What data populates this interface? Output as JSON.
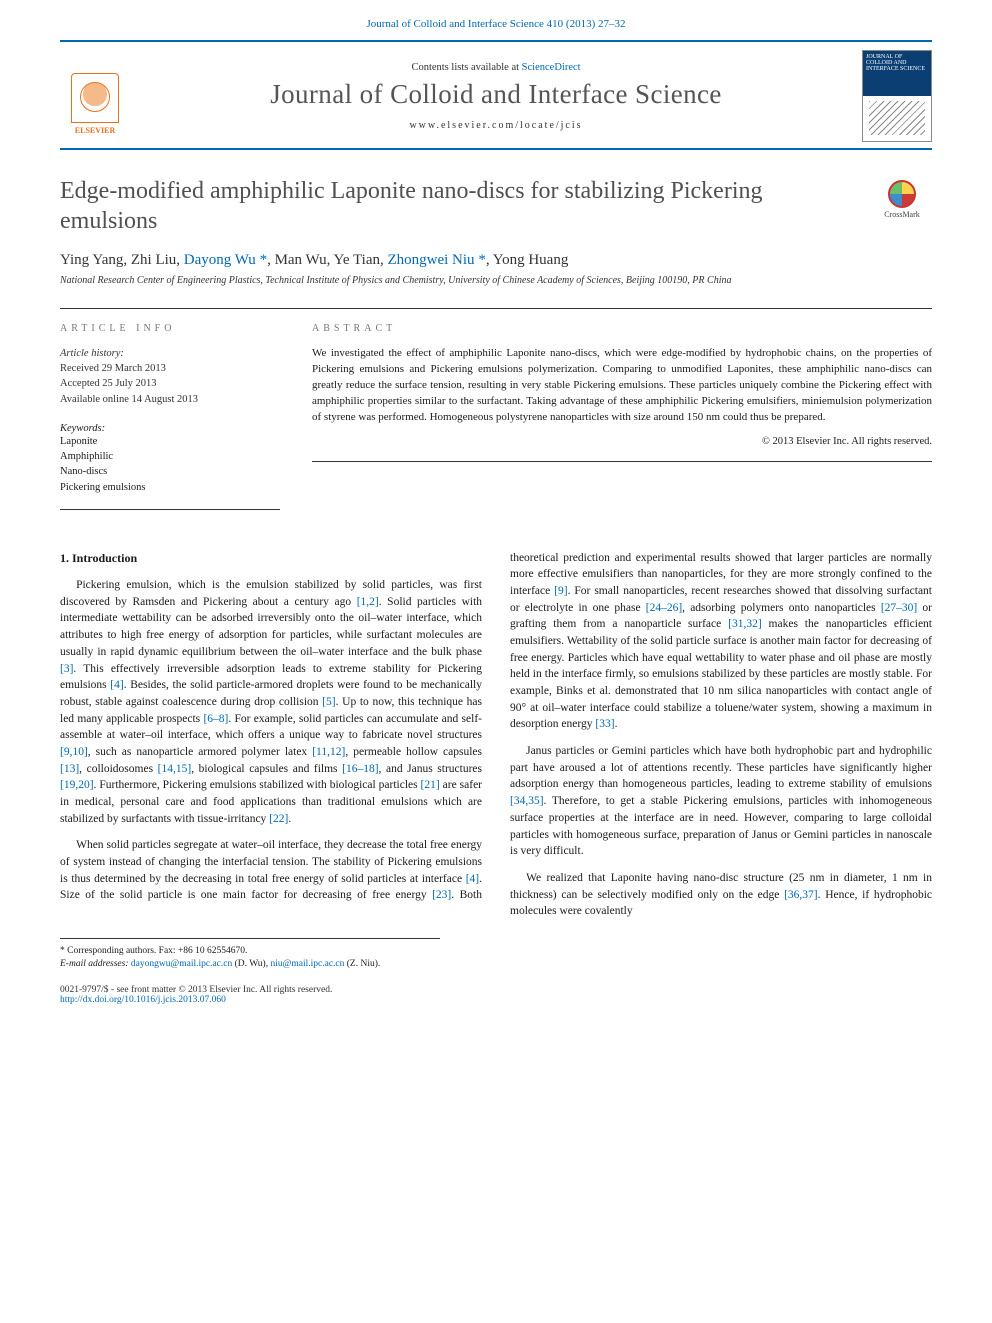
{
  "header": {
    "journal_citation_link": "Journal of Colloid and Interface Science 410 (2013) 27–32",
    "contents_prefix": "Contents lists available at ",
    "contents_link_label": "ScienceDirect",
    "journal_title": "Journal of Colloid and Interface Science",
    "locate_url": "www.elsevier.com/locate/jcis",
    "publisher_name": "ELSEVIER",
    "cover_caption": "JOURNAL OF COLLOID AND INTERFACE SCIENCE"
  },
  "crossmark_label": "CrossMark",
  "article": {
    "title": "Edge-modified amphiphilic Laponite nano-discs for stabilizing Pickering emulsions",
    "authors_html": "Ying Yang, Zhi Liu, Dayong Wu *, Man Wu, Ye Tian, Zhongwei Niu *, Yong Huang",
    "authors": [
      {
        "name": "Ying Yang"
      },
      {
        "name": "Zhi Liu"
      },
      {
        "name": "Dayong Wu",
        "corr": true,
        "link": true
      },
      {
        "name": "Man Wu"
      },
      {
        "name": "Ye Tian"
      },
      {
        "name": "Zhongwei Niu",
        "corr": true,
        "link": true
      },
      {
        "name": "Yong Huang"
      }
    ],
    "affiliation": "National Research Center of Engineering Plastics, Technical Institute of Physics and Chemistry, University of Chinese Academy of Sciences, Beijing 100190, PR China"
  },
  "info": {
    "section_label": "ARTICLE INFO",
    "history_label": "Article history:",
    "received": "Received 29 March 2013",
    "accepted": "Accepted 25 July 2013",
    "online": "Available online 14 August 2013",
    "keywords_label": "Keywords:",
    "keywords": [
      "Laponite",
      "Amphiphilic",
      "Nano-discs",
      "Pickering emulsions"
    ]
  },
  "abstract": {
    "section_label": "ABSTRACT",
    "text": "We investigated the effect of amphiphilic Laponite nano-discs, which were edge-modified by hydrophobic chains, on the properties of Pickering emulsions and Pickering emulsions polymerization. Comparing to unmodified Laponites, these amphiphilic nano-discs can greatly reduce the surface tension, resulting in very stable Pickering emulsions. These particles uniquely combine the Pickering effect with amphiphilic properties similar to the surfactant. Taking advantage of these amphiphilic Pickering emulsifiers, miniemulsion polymerization of styrene was performed. Homogeneous polystyrene nanoparticles with size around 150 nm could thus be prepared.",
    "copyright": "© 2013 Elsevier Inc. All rights reserved."
  },
  "body": {
    "heading": "1. Introduction",
    "p1_a": "Pickering emulsion, which is the emulsion stabilized by solid particles, was first discovered by Ramsden and Pickering about a century ago ",
    "ref_1_2": "[1,2]",
    "p1_b": ". Solid particles with intermediate wettability can be adsorbed irreversibly onto the oil–water interface, which attributes to high free energy of adsorption for particles, while surfactant molecules are usually in rapid dynamic equilibrium between the oil–water interface and the bulk phase ",
    "ref_3": "[3]",
    "p1_c": ". This effectively irreversible adsorption leads to extreme stability for Pickering emulsions ",
    "ref_4": "[4]",
    "p1_d": ". Besides, the solid particle-armored droplets were found to be mechanically robust, stable against coalescence during drop collision ",
    "ref_5": "[5]",
    "p1_e": ". Up to now, this technique has led many applicable prospects ",
    "ref_6_8": "[6–8]",
    "p1_f": ". For example, solid particles can accumulate and self-assemble at water–oil interface, which offers a unique way to fabricate novel structures ",
    "ref_9_10": "[9,10]",
    "p1_g": ", such as nanoparticle armored polymer latex ",
    "ref_11_12": "[11,12]",
    "p1_h": ", permeable hollow capsules ",
    "ref_13": "[13]",
    "p1_i": ", colloidosomes ",
    "ref_14_15": "[14,15]",
    "p1_j": ", biological capsules and films ",
    "ref_16_18": "[16–18]",
    "p1_k": ", and Janus structures ",
    "ref_19_20": "[19,20]",
    "p1_l": ". Furthermore, Pickering emulsions stabilized with biological particles ",
    "ref_21": "[21]",
    "p1_m": " are safer in medical, personal care and food applications than traditional emulsions which are stabilized by surfactants with tissue-irritancy ",
    "ref_22": "[22]",
    "p1_n": ".",
    "p2_a": "When solid particles segregate at water–oil interface, they decrease the total free energy of system instead of changing the interfacial tension. The stability of Pickering emulsions is thus determined by the decreasing in total free energy of solid particles at interface ",
    "ref_4b": "[4]",
    "p2_b": ". Size of the solid particle is one main factor for decreasing of free energy ",
    "ref_23": "[23]",
    "p2_c": ". Both theoretical prediction and experimental results showed that larger particles are normally more effective emulsifiers than nanoparticles, for they are more strongly confined to the interface ",
    "ref_9": "[9]",
    "p2_d": ". For small nanoparticles, recent researches showed that dissolving surfactant or electrolyte in one phase ",
    "ref_24_26": "[24–26]",
    "p2_e": ", adsorbing polymers onto nanoparticles ",
    "ref_27_30": "[27–30]",
    "p2_f": " or grafting them from a nanoparticle surface ",
    "ref_31_32": "[31,32]",
    "p2_g": " makes the nanoparticles efficient emulsifiers. Wettability of the solid particle surface is another main factor for decreasing of free energy. Particles which have equal wettability to water phase and oil phase are mostly held in the interface firmly, so emulsions stabilized by these particles are mostly stable. For example, Binks et al. demonstrated that 10 nm silica nanoparticles with contact angle of 90° at oil–water interface could stabilize a toluene/water system, showing a maximum in desorption energy ",
    "ref_33": "[33]",
    "p2_h": ".",
    "p3_a": "Janus particles or Gemini particles which have both hydrophobic part and hydrophilic part have aroused a lot of attentions recently. These particles have significantly higher adsorption energy than homogeneous particles, leading to extreme stability of emulsions ",
    "ref_34_35": "[34,35]",
    "p3_b": ". Therefore, to get a stable Pickering emulsions, particles with inhomogeneous surface properties at the interface are in need. However, comparing to large colloidal particles with homogeneous surface, preparation of Janus or Gemini particles in nanoscale is very difficult.",
    "p4_a": "We realized that Laponite having nano-disc structure (25 nm in diameter, 1 nm in thickness) can be selectively modified only on the edge ",
    "ref_36_37": "[36,37]",
    "p4_b": ". Hence, if hydrophobic molecules were covalently"
  },
  "footnotes": {
    "corr_label": "* Corresponding authors. Fax: +86 10 62554670.",
    "email_label": "E-mail addresses:",
    "email1": "dayongwu@mail.ipc.ac.cn",
    "email1_who": "(D. Wu),",
    "email2": "niu@mail.ipc.ac.cn",
    "email2_who": "(Z. Niu)."
  },
  "bottom": {
    "issn_line": "0021-9797/$ - see front matter © 2013 Elsevier Inc. All rights reserved.",
    "doi_label": "http://dx.doi.org/10.1016/j.jcis.2013.07.060"
  },
  "colors": {
    "link": "#0068b3",
    "rule": "#0068b3",
    "publisher": "#e9711c",
    "title_grey": "#505050"
  }
}
